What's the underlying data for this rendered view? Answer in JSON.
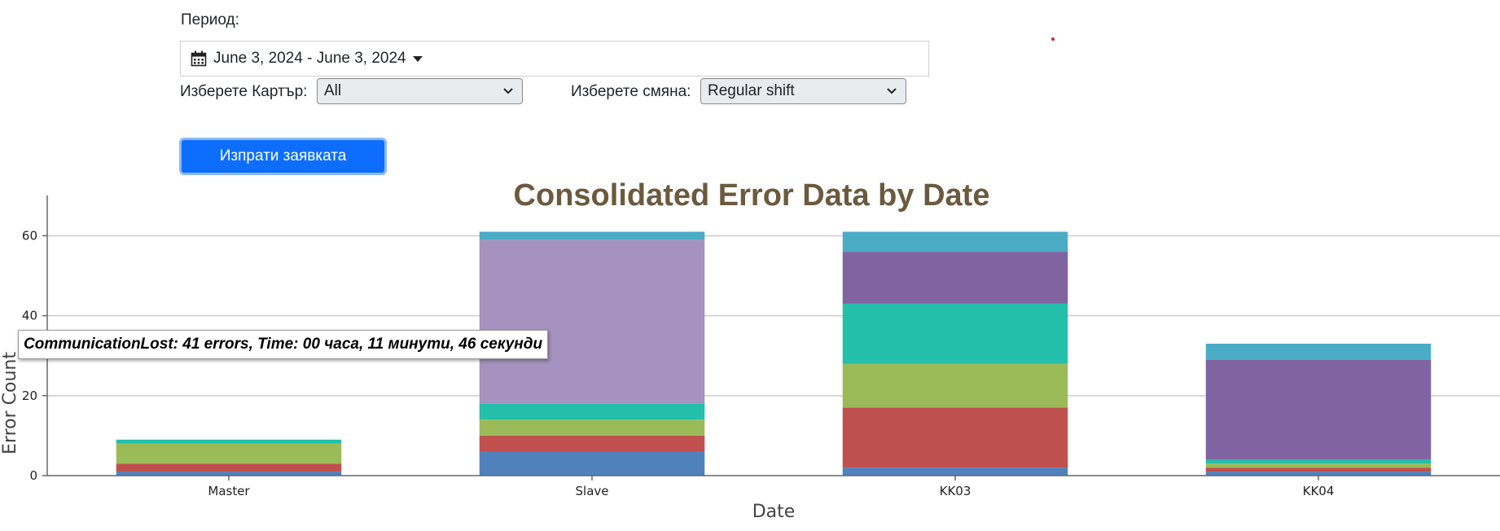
{
  "filters": {
    "period_label": "Период:",
    "date_range": "June 3, 2024 - June 3, 2024",
    "carter_label": "Изберете Картър:",
    "carter_value": "All",
    "shift_label": "Изберете смяна:",
    "shift_value": "Regular shift",
    "submit_label": "Изпрати заявката"
  },
  "tooltip": "CommunicationLost: 41 errors, Time: 00 часа, 11 минути, 46 секунди",
  "chart_data": {
    "type": "bar",
    "stacked": true,
    "title": "Consolidated Error Data by Date",
    "xlabel": "Date",
    "ylabel": "Error Count",
    "categories": [
      "Master",
      "Slave",
      "KK03",
      "KK04"
    ],
    "ylim": [
      0,
      66
    ],
    "yticks": [
      0,
      20,
      40,
      60
    ],
    "grid": true,
    "title_color": "#6b5a3e",
    "series": [
      {
        "color": "#4f81bd",
        "values": [
          1,
          6,
          2,
          1
        ]
      },
      {
        "color": "#c0504d",
        "values": [
          2,
          4,
          15,
          1
        ]
      },
      {
        "color": "#9bbb59",
        "values": [
          5,
          4,
          11,
          1
        ]
      },
      {
        "color": "#23bfaa",
        "values": [
          1,
          4,
          15,
          1
        ]
      },
      {
        "color": "#a592bf",
        "values": [
          0,
          41,
          0,
          0
        ]
      },
      {
        "color": "#8064a2",
        "values": [
          0,
          0,
          13,
          25
        ]
      },
      {
        "color": "#4bacc6",
        "values": [
          0,
          2,
          5,
          4
        ]
      }
    ]
  }
}
